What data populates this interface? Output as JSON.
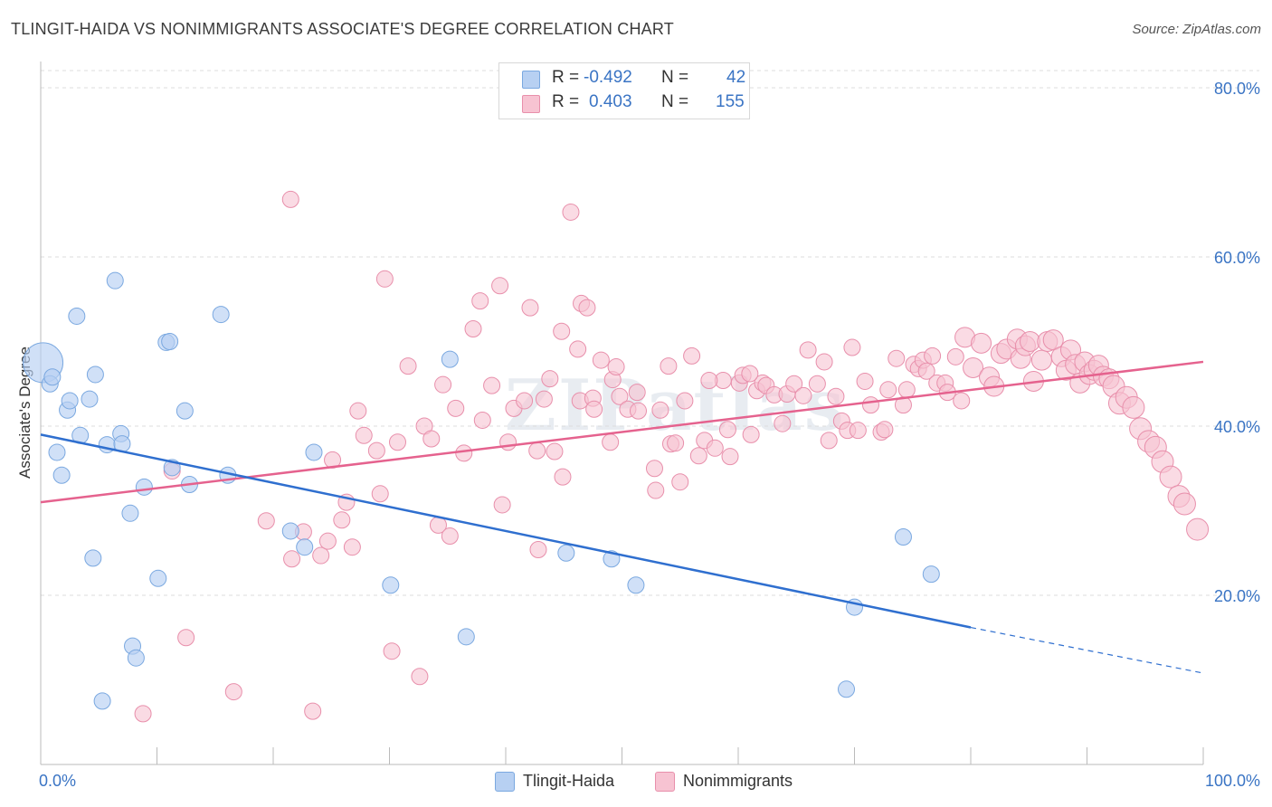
{
  "title": "TLINGIT-HAIDA VS NONIMMIGRANTS ASSOCIATE'S DEGREE CORRELATION CHART",
  "source": "Source: ZipAtlas.com",
  "watermark": "ZIPatlas",
  "colors": {
    "blue_fill": "#b7d0f2",
    "blue_stroke": "#7aa8e0",
    "blue_line": "#2f6fcf",
    "pink_fill": "#f7c3d2",
    "pink_stroke": "#e88fab",
    "pink_line": "#e5628e",
    "axis_text": "#3a74c4",
    "grid": "#dddddd"
  },
  "legend_top": {
    "rows": [
      {
        "r_label": "R =",
        "r_value": "-0.492",
        "n_label": "N =",
        "n_value": "42"
      },
      {
        "r_label": "R =",
        "r_value": "0.403",
        "n_label": "N =",
        "n_value": "155"
      }
    ]
  },
  "legend_bottom": [
    "Tlingit-Haida",
    "Nonimmigrants"
  ],
  "chart_data": {
    "type": "scatter",
    "title": "TLINGIT-HAIDA VS NONIMMIGRANTS ASSOCIATE'S DEGREE CORRELATION CHART",
    "xlabel": "",
    "ylabel": "Associate's Degree",
    "xlim": [
      0,
      100
    ],
    "ylim": [
      0,
      82
    ],
    "x_tick_labels": [
      "0.0%",
      "100.0%"
    ],
    "y_ticks": [
      20,
      40,
      60,
      80
    ],
    "y_tick_labels": [
      "20.0%",
      "40.0%",
      "60.0%",
      "80.0%"
    ],
    "grid": "horizontal dashed",
    "legend": "bottom-center",
    "series": [
      {
        "name": "Tlingit-Haida",
        "r": -0.492,
        "n": 42,
        "trend": {
          "x": [
            0,
            80
          ],
          "y": [
            39.0,
            16.2
          ],
          "dashed_extension_to": [
            100,
            10.8
          ]
        },
        "points": [
          [
            0.2,
            47.5,
            22
          ],
          [
            0.8,
            45.0,
            9
          ],
          [
            1.0,
            45.8,
            9
          ],
          [
            1.4,
            36.9,
            9
          ],
          [
            1.8,
            34.2,
            9
          ],
          [
            2.3,
            41.9,
            9
          ],
          [
            2.5,
            43.0,
            9
          ],
          [
            3.1,
            53.0,
            9
          ],
          [
            3.4,
            38.9,
            9
          ],
          [
            4.2,
            43.2,
            9
          ],
          [
            4.5,
            24.4,
            9
          ],
          [
            4.7,
            46.1,
            9
          ],
          [
            5.3,
            7.5,
            9
          ],
          [
            5.7,
            37.8,
            9
          ],
          [
            6.4,
            57.2,
            9
          ],
          [
            6.9,
            39.1,
            9
          ],
          [
            7.0,
            37.9,
            9
          ],
          [
            7.7,
            29.7,
            9
          ],
          [
            7.9,
            14.0,
            9
          ],
          [
            8.2,
            12.6,
            9
          ],
          [
            8.9,
            32.8,
            9
          ],
          [
            10.1,
            22.0,
            9
          ],
          [
            10.8,
            49.9,
            9
          ],
          [
            11.1,
            50.0,
            9
          ],
          [
            11.3,
            35.1,
            9
          ],
          [
            12.4,
            41.8,
            9
          ],
          [
            12.8,
            33.1,
            9
          ],
          [
            15.5,
            53.2,
            9
          ],
          [
            16.1,
            34.2,
            9
          ],
          [
            21.5,
            27.6,
            9
          ],
          [
            22.7,
            25.7,
            9
          ],
          [
            23.5,
            36.9,
            9
          ],
          [
            30.1,
            21.2,
            9
          ],
          [
            35.2,
            47.9,
            9
          ],
          [
            36.6,
            15.1,
            9
          ],
          [
            45.2,
            25.0,
            9
          ],
          [
            49.1,
            24.3,
            9
          ],
          [
            51.2,
            21.2,
            9
          ],
          [
            69.3,
            8.9,
            9
          ],
          [
            70.0,
            18.6,
            9
          ],
          [
            74.2,
            26.9,
            9
          ],
          [
            76.6,
            22.5,
            9
          ]
        ]
      },
      {
        "name": "Nonimmigrants",
        "r": 0.403,
        "n": 155,
        "trend": {
          "x": [
            0,
            100
          ],
          "y": [
            31.0,
            47.6
          ]
        },
        "points": [
          [
            8.8,
            6.0,
            9
          ],
          [
            11.3,
            34.7,
            9
          ],
          [
            12.5,
            15.0,
            9
          ],
          [
            16.6,
            8.6,
            9
          ],
          [
            19.4,
            28.8,
            9
          ],
          [
            21.5,
            66.8,
            9
          ],
          [
            21.6,
            24.3,
            9
          ],
          [
            22.6,
            27.5,
            9
          ],
          [
            23.4,
            6.3,
            9
          ],
          [
            24.1,
            24.7,
            9
          ],
          [
            24.7,
            26.4,
            9
          ],
          [
            25.1,
            36.0,
            9
          ],
          [
            25.9,
            28.9,
            9
          ],
          [
            26.3,
            31.0,
            9
          ],
          [
            26.8,
            25.7,
            9
          ],
          [
            27.3,
            41.8,
            9
          ],
          [
            27.8,
            38.9,
            9
          ],
          [
            28.9,
            37.1,
            9
          ],
          [
            29.2,
            32.0,
            9
          ],
          [
            29.6,
            57.4,
            9
          ],
          [
            30.2,
            13.4,
            9
          ],
          [
            30.7,
            38.1,
            9
          ],
          [
            31.6,
            47.1,
            9
          ],
          [
            32.6,
            10.4,
            9
          ],
          [
            33.0,
            40.0,
            9
          ],
          [
            33.6,
            38.5,
            9
          ],
          [
            34.2,
            28.3,
            9
          ],
          [
            34.6,
            44.9,
            9
          ],
          [
            35.2,
            27.0,
            9
          ],
          [
            35.7,
            42.1,
            9
          ],
          [
            36.4,
            36.8,
            9
          ],
          [
            37.2,
            51.5,
            9
          ],
          [
            37.8,
            54.8,
            9
          ],
          [
            38.0,
            40.7,
            9
          ],
          [
            38.8,
            44.8,
            9
          ],
          [
            39.5,
            56.6,
            9
          ],
          [
            39.7,
            30.7,
            9
          ],
          [
            40.2,
            38.1,
            9
          ],
          [
            40.7,
            42.1,
            9
          ],
          [
            41.6,
            43.0,
            9
          ],
          [
            42.1,
            54.0,
            9
          ],
          [
            42.7,
            37.1,
            9
          ],
          [
            42.8,
            25.4,
            9
          ],
          [
            43.3,
            43.2,
            9
          ],
          [
            43.8,
            45.6,
            9
          ],
          [
            44.2,
            37.0,
            9
          ],
          [
            44.8,
            51.2,
            9
          ],
          [
            44.9,
            34.0,
            9
          ],
          [
            45.6,
            65.3,
            9
          ],
          [
            46.2,
            49.1,
            9
          ],
          [
            46.4,
            43.0,
            9
          ],
          [
            46.5,
            54.5,
            9
          ],
          [
            47.0,
            54.0,
            9
          ],
          [
            47.5,
            43.3,
            9
          ],
          [
            47.6,
            42.0,
            9
          ],
          [
            48.2,
            47.8,
            9
          ],
          [
            49.0,
            38.1,
            9
          ],
          [
            49.2,
            45.5,
            9
          ],
          [
            49.5,
            47.0,
            9
          ],
          [
            49.8,
            43.5,
            9
          ],
          [
            50.5,
            42.0,
            9
          ],
          [
            51.3,
            44.0,
            9
          ],
          [
            51.4,
            41.8,
            9
          ],
          [
            52.8,
            35.0,
            9
          ],
          [
            52.9,
            32.4,
            9
          ],
          [
            53.3,
            41.9,
            9
          ],
          [
            54.0,
            47.1,
            9
          ],
          [
            54.2,
            37.9,
            9
          ],
          [
            54.6,
            38.0,
            9
          ],
          [
            55.0,
            33.4,
            9
          ],
          [
            55.4,
            43.0,
            9
          ],
          [
            56.0,
            48.3,
            9
          ],
          [
            56.6,
            36.5,
            9
          ],
          [
            57.1,
            38.3,
            9
          ],
          [
            58.0,
            37.4,
            9
          ],
          [
            58.7,
            45.4,
            9
          ],
          [
            59.1,
            39.6,
            9
          ],
          [
            59.3,
            36.4,
            9
          ],
          [
            60.1,
            45.1,
            9
          ],
          [
            60.4,
            46.0,
            9
          ],
          [
            61.1,
            39.0,
            9
          ],
          [
            61.6,
            44.2,
            9
          ],
          [
            62.1,
            45.1,
            9
          ],
          [
            62.4,
            44.8,
            9
          ],
          [
            63.1,
            43.7,
            9
          ],
          [
            63.8,
            40.3,
            9
          ],
          [
            64.2,
            43.8,
            9
          ],
          [
            64.8,
            45.0,
            9
          ],
          [
            65.6,
            43.6,
            9
          ],
          [
            66.8,
            45.0,
            9
          ],
          [
            67.4,
            47.6,
            9
          ],
          [
            67.8,
            38.3,
            9
          ],
          [
            68.4,
            43.5,
            9
          ],
          [
            68.9,
            40.6,
            9
          ],
          [
            69.4,
            39.5,
            9
          ],
          [
            69.8,
            49.3,
            9
          ],
          [
            70.3,
            39.5,
            9
          ],
          [
            70.9,
            45.3,
            9
          ],
          [
            71.4,
            42.5,
            9
          ],
          [
            72.3,
            39.3,
            9
          ],
          [
            72.6,
            39.6,
            9
          ],
          [
            72.9,
            44.3,
            9
          ],
          [
            73.6,
            48.0,
            9
          ],
          [
            74.2,
            42.5,
            9
          ],
          [
            74.5,
            44.3,
            9
          ],
          [
            75.1,
            47.3,
            9
          ],
          [
            75.5,
            46.8,
            9
          ],
          [
            75.9,
            47.8,
            9
          ],
          [
            76.2,
            46.5,
            9
          ],
          [
            76.7,
            48.3,
            9
          ],
          [
            77.1,
            45.1,
            9
          ],
          [
            77.8,
            45.1,
            9
          ],
          [
            78.0,
            44.0,
            9
          ],
          [
            78.7,
            48.2,
            9
          ],
          [
            79.2,
            43.0,
            9
          ],
          [
            79.5,
            50.5,
            11
          ],
          [
            80.2,
            46.9,
            11
          ],
          [
            80.9,
            49.8,
            11
          ],
          [
            81.6,
            45.8,
            11
          ],
          [
            82.0,
            44.7,
            11
          ],
          [
            82.6,
            48.6,
            11
          ],
          [
            83.1,
            49.1,
            11
          ],
          [
            84.0,
            50.3,
            11
          ],
          [
            84.3,
            48.0,
            11
          ],
          [
            84.7,
            49.5,
            11
          ],
          [
            85.1,
            50.0,
            11
          ],
          [
            85.4,
            45.3,
            11
          ],
          [
            86.1,
            47.8,
            11
          ],
          [
            86.6,
            50.0,
            11
          ],
          [
            87.1,
            50.2,
            11
          ],
          [
            87.8,
            48.2,
            11
          ],
          [
            88.2,
            46.6,
            11
          ],
          [
            88.6,
            49.0,
            11
          ],
          [
            89.0,
            47.3,
            11
          ],
          [
            89.4,
            45.1,
            11
          ],
          [
            89.8,
            47.6,
            11
          ],
          [
            90.2,
            46.1,
            11
          ],
          [
            90.6,
            46.6,
            11
          ],
          [
            91.0,
            47.2,
            11
          ],
          [
            91.4,
            45.9,
            11
          ],
          [
            91.9,
            45.6,
            11
          ],
          [
            92.3,
            44.7,
            12
          ],
          [
            92.8,
            42.7,
            12
          ],
          [
            93.4,
            43.4,
            12
          ],
          [
            94.0,
            42.2,
            12
          ],
          [
            94.6,
            39.7,
            12
          ],
          [
            95.3,
            38.2,
            12
          ],
          [
            95.9,
            37.5,
            12
          ],
          [
            96.5,
            35.8,
            12
          ],
          [
            97.2,
            34.0,
            12
          ],
          [
            97.9,
            31.7,
            12
          ],
          [
            98.4,
            30.8,
            12
          ],
          [
            99.5,
            27.8,
            12
          ],
          [
            61.0,
            46.2,
            9
          ],
          [
            57.5,
            45.4,
            9
          ],
          [
            66.0,
            49.0,
            9
          ]
        ]
      }
    ]
  }
}
